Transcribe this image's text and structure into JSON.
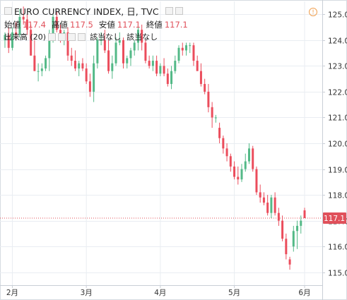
{
  "legend": {
    "symbol": "EURO CURRENCY INDEX, 日, TVC",
    "ohlc": [
      {
        "label": "始値",
        "value": "117.4"
      },
      {
        "label": "高値",
        "value": "117.5"
      },
      {
        "label": "安値",
        "value": "117.1"
      },
      {
        "label": "終値",
        "value": "117.1"
      }
    ],
    "volume_label": "出来高 (20)",
    "volume_values": [
      "該当なし",
      "該当なし"
    ]
  },
  "colors": {
    "up": "#53b987",
    "down": "#eb4d5c",
    "price_line": "#e0505a",
    "grid": "#e9edf2"
  },
  "chart_data": {
    "type": "candlestick",
    "y_ticks": [
      "125.0",
      "124.0",
      "123.0",
      "122.0",
      "121.0",
      "120.0",
      "119.0",
      "118.0",
      "117.0",
      "116.0",
      "115.0"
    ],
    "x_ticks": [
      "2月",
      "3月",
      "4月",
      "5月",
      "6月"
    ],
    "ylim": [
      114.5,
      125.5
    ],
    "last_price": 117.1,
    "last_price_label": "117.1",
    "candles": [
      [
        124.0,
        124.3,
        123.7,
        124.2
      ],
      [
        124.2,
        124.5,
        123.5,
        123.7
      ],
      [
        123.7,
        124.5,
        123.6,
        124.3
      ],
      [
        124.3,
        124.7,
        124.0,
        124.2
      ],
      [
        124.2,
        125.2,
        124.1,
        124.9
      ],
      [
        124.9,
        125.3,
        124.6,
        124.8
      ],
      [
        124.8,
        125.0,
        124.2,
        124.4
      ],
      [
        124.4,
        124.6,
        123.4,
        123.4
      ],
      [
        123.4,
        124.0,
        122.8,
        122.8
      ],
      [
        122.8,
        123.1,
        122.4,
        122.8
      ],
      [
        122.8,
        123.1,
        122.6,
        122.9
      ],
      [
        122.9,
        123.4,
        122.8,
        123.3
      ],
      [
        123.3,
        124.4,
        122.8,
        124.0
      ],
      [
        124.0,
        125.0,
        123.9,
        124.9
      ],
      [
        124.9,
        125.1,
        124.3,
        124.4
      ],
      [
        124.4,
        124.6,
        123.9,
        124.1
      ],
      [
        124.1,
        124.4,
        123.8,
        124.3
      ],
      [
        124.3,
        124.5,
        123.2,
        123.4
      ],
      [
        123.4,
        123.7,
        123.0,
        123.2
      ],
      [
        123.2,
        123.6,
        122.8,
        122.9
      ],
      [
        122.9,
        123.2,
        122.6,
        123.1
      ],
      [
        123.1,
        123.3,
        122.8,
        122.9
      ],
      [
        122.9,
        123.1,
        122.3,
        122.4
      ],
      [
        122.4,
        122.7,
        121.8,
        122.0
      ],
      [
        122.0,
        123.4,
        121.6,
        123.1
      ],
      [
        123.1,
        124.1,
        122.9,
        124.0
      ],
      [
        124.0,
        124.3,
        123.8,
        124.0
      ],
      [
        124.0,
        124.4,
        123.5,
        123.6
      ],
      [
        123.6,
        124.0,
        122.7,
        122.8
      ],
      [
        122.8,
        123.4,
        122.5,
        123.1
      ],
      [
        123.1,
        124.1,
        123.0,
        123.9
      ],
      [
        123.9,
        124.3,
        123.8,
        124.0
      ],
      [
        124.0,
        124.1,
        122.9,
        123.1
      ],
      [
        123.1,
        123.4,
        122.9,
        123.3
      ],
      [
        123.3,
        123.7,
        123.0,
        123.6
      ],
      [
        123.6,
        124.0,
        123.4,
        123.9
      ],
      [
        123.9,
        124.5,
        123.6,
        124.4
      ],
      [
        124.4,
        124.6,
        123.6,
        123.9
      ],
      [
        123.9,
        124.0,
        123.1,
        123.2
      ],
      [
        123.2,
        123.4,
        122.9,
        123.0
      ],
      [
        123.0,
        123.4,
        122.8,
        123.2
      ],
      [
        123.2,
        123.4,
        122.6,
        122.7
      ],
      [
        122.7,
        123.1,
        122.6,
        123.0
      ],
      [
        123.0,
        123.3,
        122.6,
        122.7
      ],
      [
        122.7,
        122.9,
        122.2,
        122.3
      ],
      [
        122.3,
        123.0,
        122.1,
        122.8
      ],
      [
        122.8,
        123.4,
        122.7,
        123.2
      ],
      [
        123.2,
        123.8,
        123.1,
        123.7
      ],
      [
        123.7,
        123.9,
        123.4,
        123.6
      ],
      [
        123.6,
        123.9,
        123.4,
        123.8
      ],
      [
        123.8,
        123.9,
        123.5,
        123.8
      ],
      [
        123.8,
        123.9,
        123.0,
        123.2
      ],
      [
        123.2,
        123.4,
        122.9,
        122.8
      ],
      [
        122.8,
        123.1,
        122.2,
        122.3
      ],
      [
        122.3,
        122.5,
        121.9,
        122.0
      ],
      [
        122.0,
        122.3,
        121.2,
        121.4
      ],
      [
        121.4,
        121.6,
        120.6,
        121.0
      ],
      [
        121.0,
        121.1,
        120.8,
        121.0
      ],
      [
        120.6,
        120.8,
        120.0,
        120.2
      ],
      [
        120.2,
        120.3,
        119.6,
        119.8
      ],
      [
        119.8,
        120.0,
        119.3,
        119.5
      ],
      [
        119.5,
        119.6,
        118.9,
        119.1
      ],
      [
        119.1,
        119.3,
        118.6,
        118.7
      ],
      [
        118.7,
        119.1,
        118.4,
        118.6
      ],
      [
        118.6,
        119.2,
        118.5,
        119.0
      ],
      [
        119.0,
        119.6,
        118.9,
        119.3
      ],
      [
        119.3,
        120.0,
        119.2,
        119.8
      ],
      [
        119.8,
        119.9,
        118.9,
        119.0
      ],
      [
        119.0,
        119.1,
        118.0,
        118.1
      ],
      [
        118.1,
        118.4,
        117.7,
        117.9
      ],
      [
        117.9,
        118.1,
        117.6,
        117.7
      ],
      [
        117.7,
        118.0,
        117.2,
        117.3
      ],
      [
        117.3,
        118.0,
        117.1,
        117.9
      ],
      [
        117.9,
        118.1,
        117.2,
        117.3
      ],
      [
        117.3,
        117.5,
        116.8,
        117.0
      ],
      [
        117.0,
        117.2,
        116.2,
        116.3
      ],
      [
        116.3,
        116.5,
        115.5,
        115.7
      ],
      [
        115.5,
        115.6,
        115.1,
        115.3
      ],
      [
        116.0,
        116.8,
        115.8,
        116.6
      ],
      [
        116.6,
        117.0,
        115.9,
        116.8
      ],
      [
        116.8,
        117.2,
        116.5,
        117.0
      ],
      [
        117.4,
        117.5,
        117.1,
        117.1
      ]
    ]
  }
}
